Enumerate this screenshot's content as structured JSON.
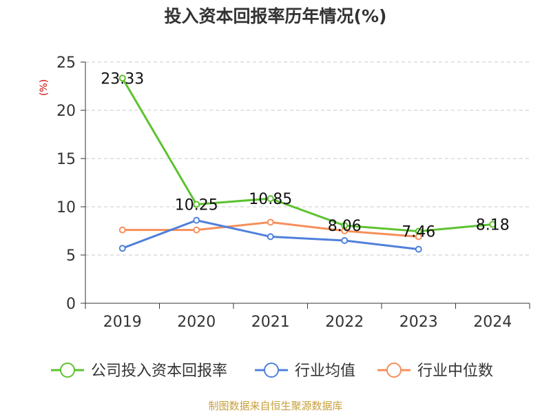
{
  "chart_data": {
    "type": "line",
    "title": "投入资本回报率历年情况(%)",
    "ylabel": "(%)",
    "xlabel": "",
    "categories": [
      "2019",
      "2020",
      "2021",
      "2022",
      "2023",
      "2024"
    ],
    "ylim": [
      0,
      25
    ],
    "yticks": [
      0,
      5,
      10,
      15,
      20,
      25
    ],
    "grid": true,
    "legend_position": "bottom",
    "series": [
      {
        "name": "公司投入资本回报率",
        "color": "#5cc22f",
        "values": [
          23.33,
          10.25,
          10.85,
          8.06,
          7.46,
          8.18
        ],
        "labels": [
          "23.33",
          "10.25",
          "10.85",
          "8.06",
          "7.46",
          "8.18"
        ]
      },
      {
        "name": "行业均值",
        "color": "#4f80db",
        "values": [
          5.7,
          8.6,
          6.9,
          6.5,
          5.6,
          null
        ]
      },
      {
        "name": "行业中位数",
        "color": "#f58f5a",
        "values": [
          7.6,
          7.6,
          8.4,
          7.5,
          6.9,
          null
        ]
      }
    ],
    "source": "制图数据来自恒生聚源数据库"
  }
}
